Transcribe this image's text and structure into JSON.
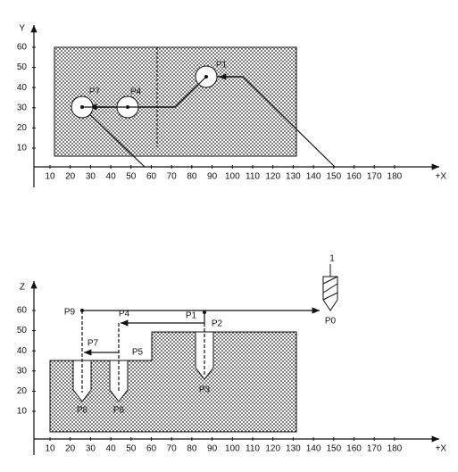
{
  "top": {
    "axis_vertical": "Y",
    "axis_horizontal": "+X",
    "vertical_ticks": [
      60,
      50,
      40,
      30,
      20,
      10
    ],
    "horizontal_ticks": [
      10,
      20,
      30,
      40,
      50,
      60,
      70,
      80,
      90,
      100,
      110,
      120,
      130,
      140,
      150,
      160,
      170,
      180
    ],
    "points": [
      "P1",
      "P4",
      "P7"
    ]
  },
  "bottom": {
    "axis_vertical": "Z",
    "axis_horizontal": "+X",
    "vertical_ticks": [
      60,
      50,
      40,
      30,
      20,
      10
    ],
    "horizontal_ticks": [
      10,
      20,
      30,
      40,
      50,
      60,
      70,
      80,
      90,
      100,
      110,
      120,
      130,
      140,
      150,
      160,
      170,
      180
    ],
    "points": [
      "P9",
      "P4",
      "P1",
      "P2",
      "P0",
      "P7",
      "P5",
      "P3",
      "P8",
      "P6"
    ],
    "tool_label": "1"
  }
}
